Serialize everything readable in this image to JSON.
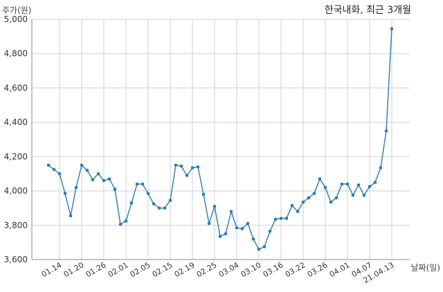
{
  "chart_data": {
    "type": "line",
    "title": "한국내화, 최근 3개월",
    "ylabel": "주가(원)",
    "xlabel": "날짜(일)",
    "ylim": [
      3600,
      5000
    ],
    "grid": true,
    "series_color": "#2a7ab0",
    "yticks": [
      {
        "value": 3600,
        "label": "3,600"
      },
      {
        "value": 3800,
        "label": "3,800"
      },
      {
        "value": 4000,
        "label": "4,000"
      },
      {
        "value": 4200,
        "label": "4,200"
      },
      {
        "value": 4400,
        "label": "4,400"
      },
      {
        "value": 4600,
        "label": "4,600"
      },
      {
        "value": 4800,
        "label": "4,800"
      },
      {
        "value": 5000,
        "label": "5,000"
      }
    ],
    "xticks": [
      {
        "index": 2,
        "label": "01.14"
      },
      {
        "index": 6,
        "label": "01.20"
      },
      {
        "index": 10,
        "label": "01.26"
      },
      {
        "index": 14,
        "label": "02.01"
      },
      {
        "index": 18,
        "label": "02.05"
      },
      {
        "index": 22,
        "label": "02.15"
      },
      {
        "index": 26,
        "label": "02.19"
      },
      {
        "index": 30,
        "label": "02.25"
      },
      {
        "index": 34,
        "label": "03.04"
      },
      {
        "index": 38,
        "label": "03.10"
      },
      {
        "index": 42,
        "label": "03.16"
      },
      {
        "index": 46,
        "label": "03.22"
      },
      {
        "index": 50,
        "label": "03.26"
      },
      {
        "index": 54,
        "label": "04.01"
      },
      {
        "index": 58,
        "label": "04.07"
      },
      {
        "index": 62,
        "label": "21.04.13"
      }
    ],
    "values": [
      4150,
      4125,
      4100,
      3985,
      3855,
      4020,
      4150,
      4120,
      4065,
      4100,
      4060,
      4070,
      4010,
      3805,
      3825,
      3930,
      4040,
      4040,
      3985,
      3925,
      3900,
      3900,
      3945,
      4150,
      4145,
      4090,
      4135,
      4140,
      3980,
      3810,
      3910,
      3735,
      3750,
      3880,
      3785,
      3780,
      3810,
      3720,
      3660,
      3675,
      3765,
      3835,
      3840,
      3840,
      3915,
      3880,
      3935,
      3960,
      3985,
      4070,
      4020,
      3935,
      3960,
      4040,
      4040,
      3975,
      4035,
      3975,
      4025,
      4050,
      4135,
      4350,
      4945
    ]
  }
}
